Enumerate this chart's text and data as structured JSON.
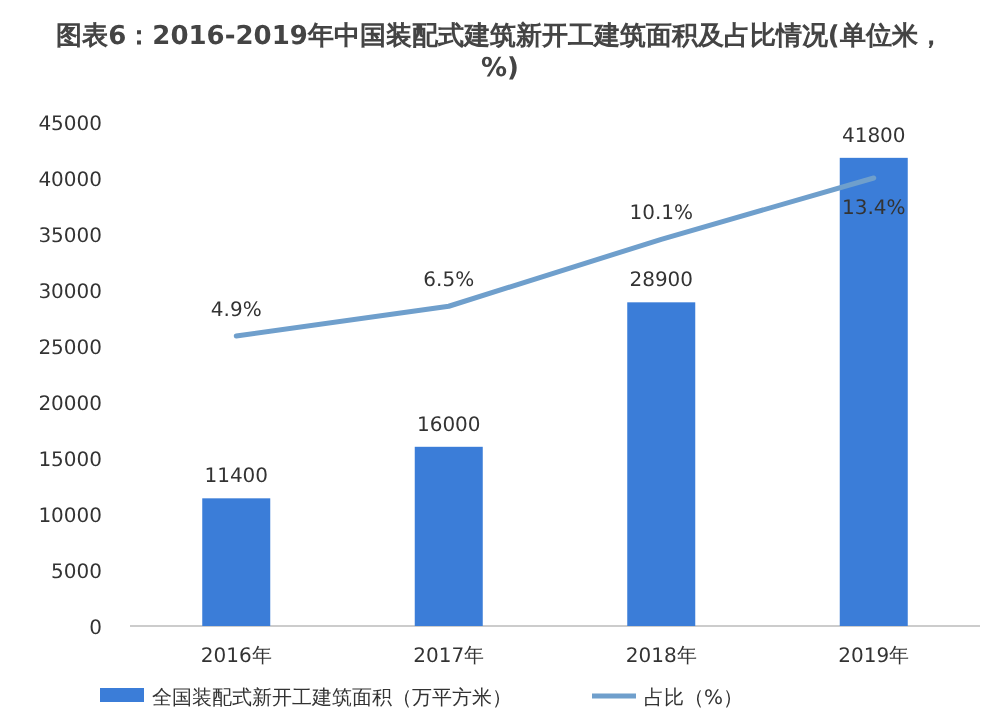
{
  "chart_data": {
    "type": "bar",
    "title": "图表6：2016-2019年中国装配式建筑新开工建筑面积及占比情况(单位米，%)",
    "categories": [
      "2016年",
      "2017年",
      "2018年",
      "2019年"
    ],
    "series": [
      {
        "name": "全国装配式新开工建筑面积（万平方米）",
        "color": "#3b7dd8",
        "values": [
          11400,
          16000,
          28900,
          41800
        ]
      },
      {
        "name": "占比（%）",
        "type": "line",
        "axis": "y2",
        "color": "#6f9fcc",
        "values": [
          4.9,
          6.5,
          10.1,
          13.4
        ],
        "value_labels": [
          "4.9%",
          "6.5%",
          "10.1%",
          "13.4%"
        ]
      }
    ],
    "ylim": [
      0,
      45000
    ],
    "yticks": [
      0,
      5000,
      10000,
      15000,
      20000,
      25000,
      30000,
      35000,
      40000,
      45000
    ],
    "data_labels": true,
    "legend": "bottom",
    "grid": false,
    "marker": "none",
    "line_style": "solid",
    "tick_labels": "xy"
  }
}
